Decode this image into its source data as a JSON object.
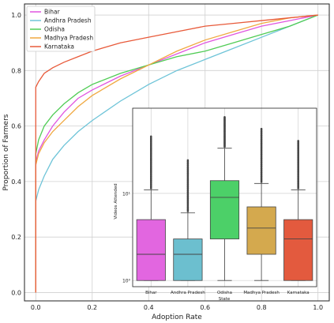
{
  "chart_data": [
    {
      "type": "line",
      "xlabel": "Adoption Rate",
      "ylabel": "Proportion of Farmers",
      "xlim": [
        -0.04,
        1.04
      ],
      "ylim": [
        -0.03,
        1.04
      ],
      "xticks": [
        "0.0",
        "0.2",
        "0.4",
        "0.6",
        "0.8",
        "1.0"
      ],
      "yticks": [
        "0.0",
        "0.2",
        "0.4",
        "0.6",
        "0.8",
        "1.0"
      ],
      "grid": true,
      "legend_position": "top-left",
      "series": [
        {
          "name": "Bihar",
          "color": "#e055e0",
          "points": [
            [
              0,
              0.0
            ],
            [
              0,
              0.47
            ],
            [
              0.01,
              0.51
            ],
            [
              0.03,
              0.55
            ],
            [
              0.06,
              0.6
            ],
            [
              0.1,
              0.65
            ],
            [
              0.15,
              0.7
            ],
            [
              0.2,
              0.73
            ],
            [
              0.3,
              0.78
            ],
            [
              0.4,
              0.82
            ],
            [
              0.5,
              0.86
            ],
            [
              0.6,
              0.9
            ],
            [
              0.7,
              0.93
            ],
            [
              0.8,
              0.96
            ],
            [
              0.9,
              0.98
            ],
            [
              1.0,
              1.0
            ]
          ]
        },
        {
          "name": "Andhra Pradesh",
          "color": "#6ec4d8",
          "points": [
            [
              0,
              0.0
            ],
            [
              0,
              0.33
            ],
            [
              0.01,
              0.37
            ],
            [
              0.03,
              0.42
            ],
            [
              0.06,
              0.48
            ],
            [
              0.1,
              0.53
            ],
            [
              0.15,
              0.58
            ],
            [
              0.2,
              0.62
            ],
            [
              0.3,
              0.69
            ],
            [
              0.4,
              0.75
            ],
            [
              0.5,
              0.8
            ],
            [
              0.6,
              0.84
            ],
            [
              0.7,
              0.88
            ],
            [
              0.8,
              0.92
            ],
            [
              0.9,
              0.96
            ],
            [
              1.0,
              1.0
            ]
          ]
        },
        {
          "name": "Odisha",
          "color": "#50cc55",
          "points": [
            [
              0,
              0.0
            ],
            [
              0,
              0.5
            ],
            [
              0.01,
              0.55
            ],
            [
              0.03,
              0.6
            ],
            [
              0.06,
              0.64
            ],
            [
              0.1,
              0.68
            ],
            [
              0.15,
              0.72
            ],
            [
              0.2,
              0.75
            ],
            [
              0.3,
              0.79
            ],
            [
              0.4,
              0.82
            ],
            [
              0.5,
              0.85
            ],
            [
              0.6,
              0.87
            ],
            [
              0.7,
              0.9
            ],
            [
              0.8,
              0.93
            ],
            [
              0.9,
              0.96
            ],
            [
              1.0,
              1.0
            ]
          ]
        },
        {
          "name": "Madhya Pradesh",
          "color": "#f0a840",
          "points": [
            [
              0,
              0.0
            ],
            [
              0,
              0.46
            ],
            [
              0.01,
              0.5
            ],
            [
              0.03,
              0.54
            ],
            [
              0.06,
              0.58
            ],
            [
              0.1,
              0.62
            ],
            [
              0.15,
              0.67
            ],
            [
              0.2,
              0.71
            ],
            [
              0.3,
              0.77
            ],
            [
              0.4,
              0.82
            ],
            [
              0.5,
              0.87
            ],
            [
              0.6,
              0.91
            ],
            [
              0.7,
              0.94
            ],
            [
              0.8,
              0.97
            ],
            [
              0.9,
              0.99
            ],
            [
              1.0,
              1.0
            ]
          ]
        },
        {
          "name": "Karnataka",
          "color": "#e85a3a",
          "points": [
            [
              0,
              0.0
            ],
            [
              0,
              0.74
            ],
            [
              0.01,
              0.76
            ],
            [
              0.03,
              0.79
            ],
            [
              0.06,
              0.81
            ],
            [
              0.1,
              0.83
            ],
            [
              0.15,
              0.85
            ],
            [
              0.2,
              0.87
            ],
            [
              0.3,
              0.9
            ],
            [
              0.4,
              0.92
            ],
            [
              0.5,
              0.94
            ],
            [
              0.6,
              0.96
            ],
            [
              0.7,
              0.97
            ],
            [
              0.8,
              0.98
            ],
            [
              0.9,
              0.99
            ],
            [
              1.0,
              1.0
            ]
          ]
        }
      ]
    },
    {
      "type": "box",
      "xlabel": "State",
      "ylabel": "Videos Attended",
      "yscale": "log",
      "ylim": [
        0.85,
        95
      ],
      "yticks": [
        "10⁰",
        "10¹"
      ],
      "categories": [
        "Bihar",
        "Andhra Pradesh",
        "Odisha",
        "Madhya Pradesh",
        "Karnataka"
      ],
      "boxes": [
        {
          "color": "#e266e0",
          "whislo": 1,
          "q1": 1,
          "med": 2,
          "q3": 5,
          "whishi": 11,
          "flier_max": 45
        },
        {
          "color": "#6cbfcf",
          "whislo": 1,
          "q1": 1,
          "med": 2,
          "q3": 3,
          "whishi": 6,
          "flier_max": 24
        },
        {
          "color": "#4cd068",
          "whislo": 1,
          "q1": 3,
          "med": 9,
          "q3": 14,
          "whishi": 33,
          "flier_max": 75
        },
        {
          "color": "#d4a94e",
          "whislo": 1,
          "q1": 2,
          "med": 4,
          "q3": 7,
          "whishi": 13,
          "flier_max": 55
        },
        {
          "color": "#e35a3e",
          "whislo": 1,
          "q1": 1,
          "med": 3,
          "q3": 5,
          "whishi": 11,
          "flier_max": 40
        }
      ]
    }
  ]
}
